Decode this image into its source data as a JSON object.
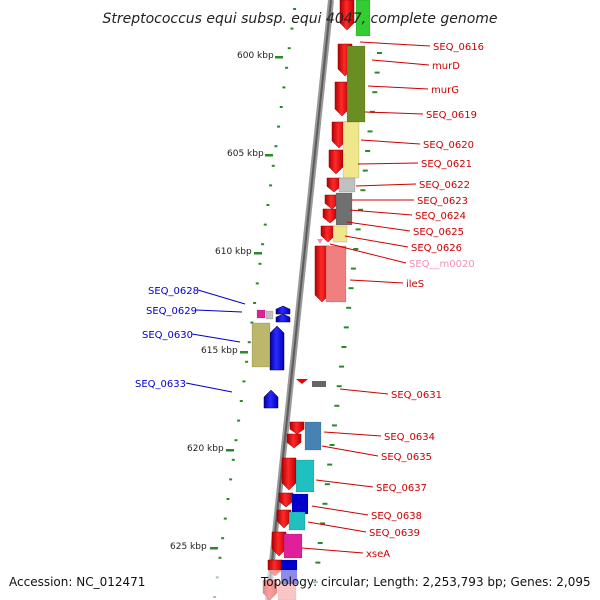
{
  "title": "Streptococcus equi subsp. equi 4047, complete genome",
  "footer": {
    "accession": "Accession: NC_012471",
    "summary": "Topology: circular; Length: 2,253,793 bp; Genes: 2,095"
  },
  "scale": {
    "unit": "kbp",
    "labels": [
      "600 kbp",
      "605 kbp",
      "610 kbp",
      "615 kbp",
      "620 kbp",
      "625 kbp"
    ]
  },
  "colors": {
    "forward_strand": "#ee0000",
    "reverse_strand": "#0000ee",
    "label_forward": "#cc0000",
    "label_reverse": "#0000cc",
    "label_misc": "#f090b8",
    "backbone": "#888888",
    "tick": "#2a8a2a"
  },
  "forward_labels": [
    {
      "text": "SEQ_0616"
    },
    {
      "text": "murD"
    },
    {
      "text": "murG"
    },
    {
      "text": "SEQ_0619"
    },
    {
      "text": "SEQ_0620"
    },
    {
      "text": "SEQ_0621"
    },
    {
      "text": "SEQ_0622"
    },
    {
      "text": "SEQ_0623"
    },
    {
      "text": "SEQ_0624"
    },
    {
      "text": "SEQ_0625"
    },
    {
      "text": "SEQ_0626"
    },
    {
      "text": "SEQ__m0020"
    },
    {
      "text": "ileS"
    },
    {
      "text": "SEQ_0631"
    },
    {
      "text": "SEQ_0634"
    },
    {
      "text": "SEQ_0635"
    },
    {
      "text": "SEQ_0637"
    },
    {
      "text": "SEQ_0638"
    },
    {
      "text": "SEQ_0639"
    },
    {
      "text": "xseA"
    }
  ],
  "reverse_labels": [
    {
      "text": "SEQ_0628"
    },
    {
      "text": "SEQ_0629"
    },
    {
      "text": "SEQ_0630"
    },
    {
      "text": "SEQ_0633"
    }
  ]
}
